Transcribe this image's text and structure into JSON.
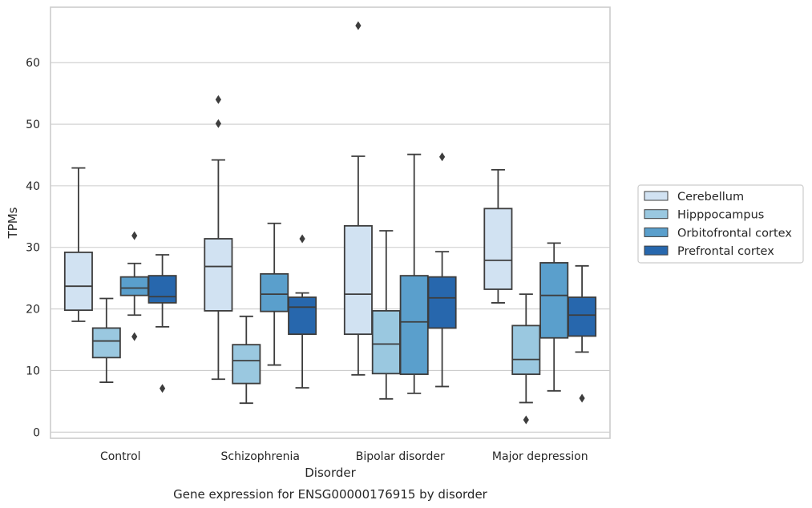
{
  "chart_data": {
    "type": "box",
    "title": "Gene expression for ENSG00000176915 by disorder",
    "xlabel": "Disorder",
    "ylabel": "TPMs",
    "ylim": [
      -1,
      69
    ],
    "yticks": [
      0,
      10,
      20,
      30,
      40,
      50,
      60
    ],
    "grid": "horizontal",
    "legend_position": "right",
    "categories": [
      "Control",
      "Schizophrenia",
      "Bipolar disorder",
      "Major depression"
    ],
    "series": [
      {
        "name": "Cerebellum",
        "color": "#d1e2f2",
        "boxes": [
          {
            "whisker_low": 18.0,
            "q1": 19.8,
            "median": 23.7,
            "q3": 29.2,
            "whisker_high": 42.9,
            "outliers": []
          },
          {
            "whisker_low": 8.6,
            "q1": 19.7,
            "median": 26.9,
            "q3": 31.4,
            "whisker_high": 44.2,
            "outliers": [
              50.1,
              54.0
            ]
          },
          {
            "whisker_low": 9.3,
            "q1": 15.9,
            "median": 22.4,
            "q3": 33.5,
            "whisker_high": 44.8,
            "outliers": [
              66.0
            ]
          },
          {
            "whisker_low": 21.0,
            "q1": 23.2,
            "median": 27.9,
            "q3": 36.3,
            "whisker_high": 42.6,
            "outliers": []
          }
        ]
      },
      {
        "name": "Hipppocampus",
        "color": "#9ac8e0",
        "boxes": [
          {
            "whisker_low": 8.1,
            "q1": 12.1,
            "median": 14.8,
            "q3": 16.9,
            "whisker_high": 21.7,
            "outliers": []
          },
          {
            "whisker_low": 4.7,
            "q1": 7.9,
            "median": 11.6,
            "q3": 14.2,
            "whisker_high": 18.8,
            "outliers": []
          },
          {
            "whisker_low": 5.4,
            "q1": 9.5,
            "median": 14.3,
            "q3": 19.7,
            "whisker_high": 32.7,
            "outliers": []
          },
          {
            "whisker_low": 4.8,
            "q1": 9.4,
            "median": 11.8,
            "q3": 17.3,
            "whisker_high": 22.4,
            "outliers": [
              2.0
            ]
          }
        ]
      },
      {
        "name": "Orbitofrontal cortex",
        "color": "#5a9fcc",
        "boxes": [
          {
            "whisker_low": 19.0,
            "q1": 22.2,
            "median": 23.4,
            "q3": 25.2,
            "whisker_high": 27.4,
            "outliers": [
              15.5,
              31.9
            ]
          },
          {
            "whisker_low": 10.9,
            "q1": 19.6,
            "median": 22.4,
            "q3": 25.7,
            "whisker_high": 33.9,
            "outliers": []
          },
          {
            "whisker_low": 6.3,
            "q1": 9.4,
            "median": 17.9,
            "q3": 25.4,
            "whisker_high": 45.1,
            "outliers": []
          },
          {
            "whisker_low": 6.7,
            "q1": 15.3,
            "median": 22.2,
            "q3": 27.5,
            "whisker_high": 30.7,
            "outliers": []
          }
        ]
      },
      {
        "name": "Prefrontal cortex",
        "color": "#2767ad",
        "boxes": [
          {
            "whisker_low": 17.1,
            "q1": 21.0,
            "median": 22.0,
            "q3": 25.4,
            "whisker_high": 28.8,
            "outliers": [
              7.1
            ]
          },
          {
            "whisker_low": 7.2,
            "q1": 15.9,
            "median": 20.3,
            "q3": 21.9,
            "whisker_high": 22.6,
            "outliers": [
              31.4
            ]
          },
          {
            "whisker_low": 7.4,
            "q1": 16.9,
            "median": 21.8,
            "q3": 25.2,
            "whisker_high": 29.3,
            "outliers": [
              44.7
            ]
          },
          {
            "whisker_low": 13.0,
            "q1": 15.6,
            "median": 19.0,
            "q3": 21.9,
            "whisker_high": 27.0,
            "outliers": [
              5.5
            ]
          }
        ]
      }
    ]
  }
}
